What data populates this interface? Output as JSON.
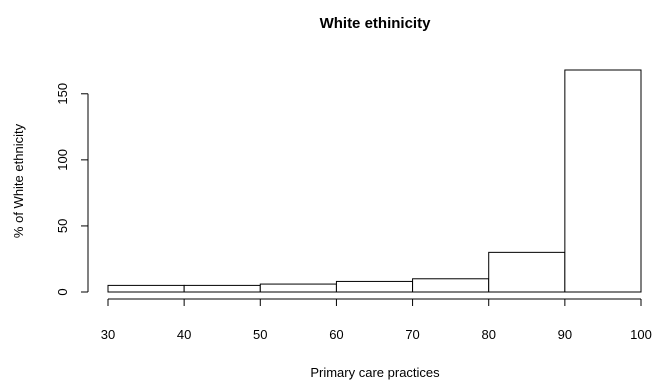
{
  "chart_data": {
    "type": "bar",
    "title": "White ethinicity",
    "xlabel": "Primary care practices",
    "ylabel": "% of White ethnicity",
    "bins": [
      {
        "start": 30,
        "end": 40,
        "value": 5
      },
      {
        "start": 40,
        "end": 50,
        "value": 5
      },
      {
        "start": 50,
        "end": 60,
        "value": 6
      },
      {
        "start": 60,
        "end": 70,
        "value": 8
      },
      {
        "start": 70,
        "end": 80,
        "value": 10
      },
      {
        "start": 80,
        "end": 90,
        "value": 30
      },
      {
        "start": 90,
        "end": 100,
        "value": 168
      }
    ],
    "xlim": [
      30,
      100
    ],
    "ylim": [
      0,
      168
    ],
    "x_ticks": [
      "30",
      "40",
      "50",
      "60",
      "70",
      "80",
      "90",
      "100"
    ],
    "y_ticks": [
      "0",
      "50",
      "100",
      "150"
    ],
    "grid": false,
    "colors": {
      "bar_fill": "#ffffff",
      "bar_stroke": "#000000"
    }
  }
}
